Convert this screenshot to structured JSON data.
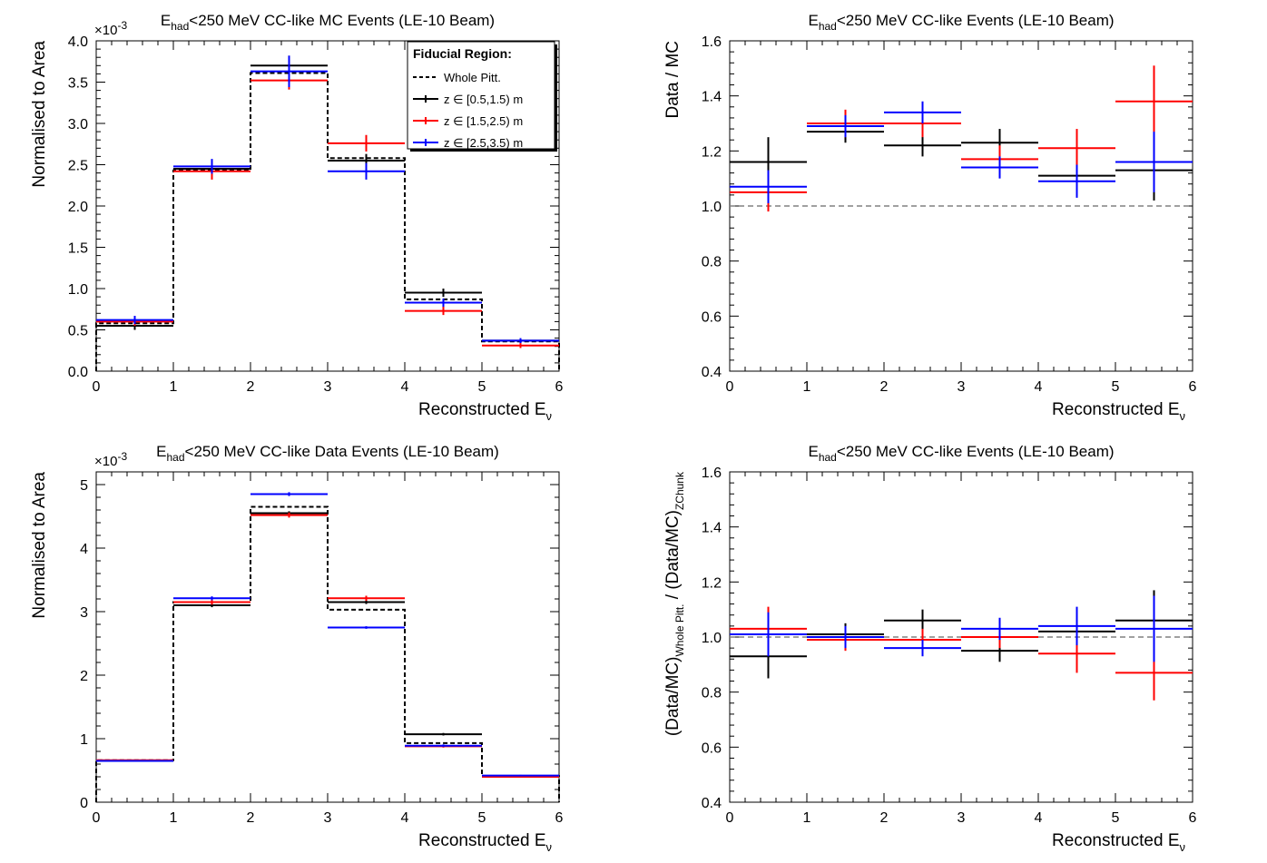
{
  "x_tick_labels": [
    "0",
    "1",
    "2",
    "3",
    "4",
    "5",
    "6"
  ],
  "xlabel": "Reconstructed E",
  "xlabel_sub": "ν",
  "legend": {
    "title": "Fiducial Region:",
    "entries": [
      {
        "label": "Whole Pitt.",
        "color": "#000000",
        "dashed": true
      },
      {
        "label": "z ∈ [0.5,1.5) m",
        "color": "#000000",
        "dashed": false
      },
      {
        "label": "z ∈ [1.5,2.5) m",
        "color": "#ff0000",
        "dashed": false
      },
      {
        "label": "z ∈ [2.5,3.5) m",
        "color": "#0000ff",
        "dashed": false
      }
    ]
  },
  "panels": [
    {
      "title_pre": "E",
      "title_sub": "had",
      "title_post": "<250 MeV CC-like MC Events (LE-10 Beam)",
      "ylabel": "Normalised to Area",
      "exponent": "×10",
      "exponent_power": "-3",
      "y_tick_labels": [
        "0.0",
        "0.5",
        "1.0",
        "1.5",
        "2.0",
        "2.5",
        "3.0",
        "3.5",
        "4.0"
      ],
      "show_legend": true
    },
    {
      "title_pre": "E",
      "title_sub": "had",
      "title_post": "<250 MeV CC-like Events (LE-10 Beam)",
      "ylabel": "Data / MC",
      "y_tick_labels": [
        "0.4",
        "0.6",
        "0.8",
        "1.0",
        "1.2",
        "1.4",
        "1.6"
      ]
    },
    {
      "title_pre": "E",
      "title_sub": "had",
      "title_post": "<250 MeV CC-like Data Events (LE-10 Beam)",
      "ylabel": "Normalised to Area",
      "exponent": "×10",
      "exponent_power": "-3",
      "y_tick_labels": [
        "0",
        "1",
        "2",
        "3",
        "4",
        "5"
      ]
    },
    {
      "title_pre": "E",
      "title_sub": "had",
      "title_post": "<250 MeV CC-like Events (LE-10 Beam)",
      "ylabel_parts": [
        "(Data/MC)",
        "Whole Pitt.",
        " / (Data/MC)",
        "ZChunk"
      ],
      "y_tick_labels": [
        "0.4",
        "0.6",
        "0.8",
        "1.0",
        "1.2",
        "1.4",
        "1.6"
      ]
    }
  ],
  "chart_data": [
    {
      "type": "step-histogram",
      "title": "E_had<250 MeV CC-like MC Events (LE-10 Beam)",
      "xlabel": "Reconstructed E_ν",
      "ylabel": "Normalised to Area",
      "y_scale_factor": "×10^-3",
      "x_bin_edges": [
        0,
        1,
        2,
        3,
        4,
        5,
        6
      ],
      "xlim": [
        0,
        6
      ],
      "ylim": [
        0,
        4.0
      ],
      "reference_line": null,
      "series": [
        {
          "name": "Whole Pitt.",
          "color": "#000000",
          "style": "dashed-step",
          "values": [
            0.58,
            2.43,
            3.61,
            2.58,
            0.87,
            0.36
          ]
        },
        {
          "name": "z ∈ [0.5,1.5) m",
          "color": "#000000",
          "style": "errorbar",
          "values": [
            0.55,
            2.45,
            3.7,
            2.55,
            0.95,
            0.37
          ],
          "errors": [
            0.05,
            0.08,
            0.12,
            0.08,
            0.05,
            0.02
          ]
        },
        {
          "name": "z ∈ [1.5,2.5) m",
          "color": "#ff0000",
          "style": "errorbar",
          "values": [
            0.6,
            2.42,
            3.52,
            2.76,
            0.73,
            0.31
          ],
          "errors": [
            0.05,
            0.1,
            0.11,
            0.1,
            0.05,
            0.03
          ]
        },
        {
          "name": "z ∈ [2.5,3.5) m",
          "color": "#0000ff",
          "style": "errorbar",
          "values": [
            0.62,
            2.48,
            3.63,
            2.42,
            0.83,
            0.37
          ],
          "errors": [
            0.05,
            0.09,
            0.19,
            0.1,
            0.05,
            0.03
          ]
        }
      ]
    },
    {
      "type": "errorbar",
      "title": "E_had<250 MeV CC-like Events (LE-10 Beam)",
      "xlabel": "Reconstructed E_ν",
      "ylabel": "Data / MC",
      "x_bin_edges": [
        0,
        1,
        2,
        3,
        4,
        5,
        6
      ],
      "xlim": [
        0,
        6
      ],
      "ylim": [
        0.4,
        1.6
      ],
      "reference_line": 1.0,
      "series": [
        {
          "name": "z ∈ [0.5,1.5) m",
          "color": "#000000",
          "values": [
            1.16,
            1.27,
            1.22,
            1.23,
            1.11,
            1.13
          ],
          "errors": [
            0.09,
            0.04,
            0.04,
            0.05,
            0.05,
            0.11
          ]
        },
        {
          "name": "z ∈ [1.5,2.5) m",
          "color": "#ff0000",
          "values": [
            1.05,
            1.3,
            1.3,
            1.17,
            1.21,
            1.38
          ],
          "errors": [
            0.07,
            0.05,
            0.05,
            0.05,
            0.07,
            0.13
          ]
        },
        {
          "name": "z ∈ [2.5,3.5) m",
          "color": "#0000ff",
          "values": [
            1.07,
            1.29,
            1.34,
            1.14,
            1.09,
            1.16
          ],
          "errors": [
            0.06,
            0.04,
            0.04,
            0.04,
            0.06,
            0.11
          ]
        }
      ]
    },
    {
      "type": "step-histogram",
      "title": "E_had<250 MeV CC-like Data Events (LE-10 Beam)",
      "xlabel": "Reconstructed E_ν",
      "ylabel": "Normalised to Area",
      "y_scale_factor": "×10^-3",
      "x_bin_edges": [
        0,
        1,
        2,
        3,
        4,
        5,
        6
      ],
      "xlim": [
        0,
        6
      ],
      "ylim": [
        0,
        5.2
      ],
      "reference_line": null,
      "series": [
        {
          "name": "Whole Pitt.",
          "color": "#000000",
          "style": "dashed-step",
          "values": [
            0.66,
            3.15,
            4.65,
            3.03,
            0.93,
            0.41
          ]
        },
        {
          "name": "z ∈ [0.5,1.5) m",
          "color": "#000000",
          "style": "errorbar",
          "values": [
            0.65,
            3.1,
            4.55,
            3.15,
            1.07,
            0.4
          ],
          "errors": [
            0.01,
            0.03,
            0.03,
            0.03,
            0.02,
            0.01
          ]
        },
        {
          "name": "z ∈ [1.5,2.5) m",
          "color": "#ff0000",
          "style": "errorbar",
          "values": [
            0.66,
            3.15,
            4.52,
            3.21,
            0.88,
            0.4
          ],
          "errors": [
            0.01,
            0.04,
            0.04,
            0.04,
            0.02,
            0.01
          ]
        },
        {
          "name": "z ∈ [2.5,3.5) m",
          "color": "#0000ff",
          "style": "errorbar",
          "values": [
            0.65,
            3.21,
            4.85,
            2.75,
            0.89,
            0.42
          ],
          "errors": [
            0.01,
            0.03,
            0.03,
            0.02,
            0.02,
            0.01
          ]
        }
      ]
    },
    {
      "type": "errorbar",
      "title": "E_had<250 MeV CC-like Events (LE-10 Beam)",
      "xlabel": "Reconstructed E_ν",
      "ylabel": "(Data/MC)_Whole Pitt. / (Data/MC)_ZChunk",
      "x_bin_edges": [
        0,
        1,
        2,
        3,
        4,
        5,
        6
      ],
      "xlim": [
        0,
        6
      ],
      "ylim": [
        0.4,
        1.6
      ],
      "reference_line": 1.0,
      "series": [
        {
          "name": "z ∈ [0.5,1.5) m",
          "color": "#000000",
          "values": [
            0.93,
            1.01,
            1.06,
            0.95,
            1.02,
            1.06
          ],
          "errors": [
            0.08,
            0.04,
            0.04,
            0.04,
            0.05,
            0.11
          ]
        },
        {
          "name": "z ∈ [1.5,2.5) m",
          "color": "#ff0000",
          "values": [
            1.03,
            0.99,
            0.99,
            1.0,
            0.94,
            0.87
          ],
          "errors": [
            0.08,
            0.04,
            0.04,
            0.04,
            0.07,
            0.1
          ]
        },
        {
          "name": "z ∈ [2.5,3.5) m",
          "color": "#0000ff",
          "values": [
            1.01,
            1.0,
            0.96,
            1.03,
            1.04,
            1.03
          ],
          "errors": [
            0.08,
            0.04,
            0.03,
            0.04,
            0.07,
            0.12
          ]
        }
      ]
    }
  ]
}
